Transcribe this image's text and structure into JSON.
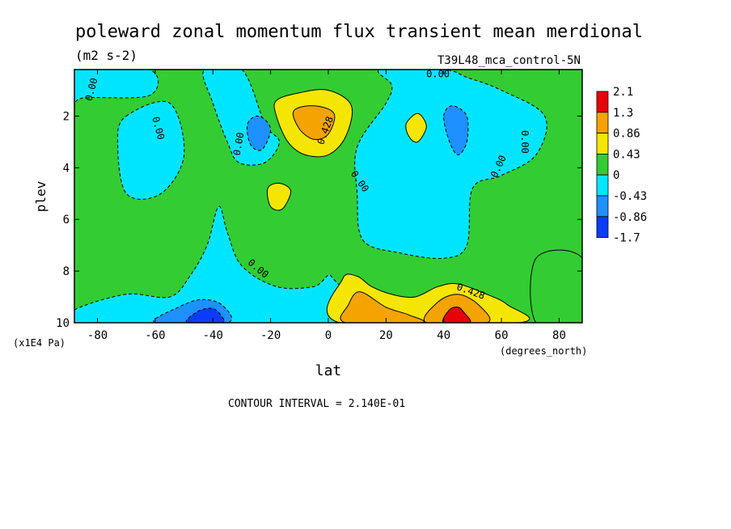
{
  "chart_data": {
    "type": "heatmap",
    "title": "poleward zonal momentum flux transient mean merdional",
    "units": "(m2 s-2)",
    "dataset": "T39L48_mca_control-5N",
    "xlabel": "lat",
    "xunits": "(degrees_north)",
    "ylabel": "plev",
    "yunits": "(x1E4 Pa)",
    "xlim": [
      -88,
      88
    ],
    "ylim": [
      10,
      0.2
    ],
    "x_ticks": [
      -80,
      -60,
      -40,
      -20,
      0,
      20,
      40,
      60,
      80
    ],
    "x_tick_labels": [
      "-80",
      "-60",
      "-40",
      "-20",
      "0",
      "20",
      "40",
      "60",
      "80"
    ],
    "y_ticks": [
      2,
      4,
      6,
      8,
      10
    ],
    "y_tick_labels": [
      "2",
      "4",
      "6",
      "8",
      "10"
    ],
    "contour_interval_text": "CONTOUR INTERVAL = 2.140E-01",
    "contour_labels": [
      "0.00",
      "0.00",
      "0.00",
      "0.00",
      "0.00",
      "0.00",
      "0.00",
      "0.00",
      "0.428",
      "0.428"
    ],
    "colorbar": {
      "labels": [
        "2.1",
        "1.3",
        "0.86",
        "0.43",
        "0",
        "-0.43",
        "-0.86",
        "-1.7"
      ],
      "colors": [
        "#e8000b",
        "#f5a300",
        "#f5e600",
        "#33cc33",
        "#00e5ff",
        "#1e90ff",
        "#0a3cff"
      ]
    },
    "background_level": {
      "value_range": [
        0,
        0.43
      ],
      "color": "#33cc33"
    },
    "regions": [
      {
        "level": -0.2,
        "color": "#00e5ff",
        "points": [
          [
            -88,
            0.2
          ],
          [
            -62,
            0.2
          ],
          [
            -62,
            1.2
          ],
          [
            -85,
            1.3
          ],
          [
            -88,
            1.6
          ]
        ]
      },
      {
        "level": -0.2,
        "color": "#00e5ff",
        "points": [
          [
            -70,
            2.0
          ],
          [
            -55,
            1.5
          ],
          [
            -50,
            3.5
          ],
          [
            -58,
            5.0
          ],
          [
            -70,
            5.0
          ],
          [
            -73,
            3.0
          ]
        ]
      },
      {
        "level": -0.2,
        "color": "#00e5ff",
        "points": [
          [
            -43,
            0.2
          ],
          [
            -30,
            0.2
          ],
          [
            -22,
            2.3
          ],
          [
            -17,
            3.0
          ],
          [
            -22,
            3.8
          ],
          [
            -31,
            3.8
          ],
          [
            -35,
            3.0
          ],
          [
            -40,
            1.5
          ]
        ]
      },
      {
        "level": -0.5,
        "color": "#1e90ff",
        "points": [
          [
            -28,
            2.3
          ],
          [
            -24,
            2.0
          ],
          [
            -20,
            2.5
          ],
          [
            -23,
            3.3
          ],
          [
            -27,
            3.1
          ]
        ]
      },
      {
        "level": -0.2,
        "color": "#00e5ff",
        "points": [
          [
            18,
            0.2
          ],
          [
            40,
            0.2
          ],
          [
            48,
            0.5
          ],
          [
            60,
            1.0
          ],
          [
            75,
            2.0
          ],
          [
            72,
            3.5
          ],
          [
            60,
            4.3
          ],
          [
            50,
            4.8
          ],
          [
            48,
            7.0
          ],
          [
            40,
            7.5
          ],
          [
            25,
            7.3
          ],
          [
            12,
            6.8
          ],
          [
            10,
            5.0
          ],
          [
            10,
            3.2
          ],
          [
            20,
            1.5
          ],
          [
            22,
            0.8
          ]
        ]
      },
      {
        "level": -0.5,
        "color": "#1e90ff",
        "points": [
          [
            40,
            2.0
          ],
          [
            43,
            1.6
          ],
          [
            48,
            2.0
          ],
          [
            48,
            3.0
          ],
          [
            45,
            3.5
          ],
          [
            42,
            3.0
          ]
        ]
      },
      {
        "level": -0.2,
        "color": "#00e5ff",
        "points": [
          [
            -88,
            9.5
          ],
          [
            -70,
            8.9
          ],
          [
            -55,
            9.0
          ],
          [
            -48,
            8.2
          ],
          [
            -42,
            7.0
          ],
          [
            -38,
            5.5
          ],
          [
            -35,
            6.5
          ],
          [
            -30,
            7.8
          ],
          [
            -18,
            8.6
          ],
          [
            -5,
            8.6
          ],
          [
            1,
            8.2
          ],
          [
            2,
            10
          ],
          [
            -88,
            10
          ]
        ]
      },
      {
        "level": -0.5,
        "color": "#1e90ff",
        "points": [
          [
            -60,
            10
          ],
          [
            -52,
            9.4
          ],
          [
            -44,
            9.1
          ],
          [
            -37,
            9.3
          ],
          [
            -35,
            10
          ]
        ]
      },
      {
        "level": -0.9,
        "color": "#0a3cff",
        "points": [
          [
            -49,
            10
          ],
          [
            -45,
            9.55
          ],
          [
            -40,
            9.45
          ],
          [
            -37,
            9.75
          ],
          [
            -37,
            10
          ]
        ]
      },
      {
        "level": 0.2,
        "color": "#33cc33",
        "points": [
          [
            72,
            7.5
          ],
          [
            88,
            7.5
          ],
          [
            88,
            10
          ],
          [
            72,
            10
          ]
        ]
      },
      {
        "level": 0.6,
        "color": "#f5e600",
        "points": [
          [
            -18,
            1.4
          ],
          [
            -10,
            1.1
          ],
          [
            0,
            1.0
          ],
          [
            8,
            1.6
          ],
          [
            6,
            2.8
          ],
          [
            0,
            3.5
          ],
          [
            -8,
            3.5
          ],
          [
            -14,
            3.0
          ],
          [
            -18,
            2.0
          ]
        ]
      },
      {
        "level": 1.0,
        "color": "#f5a300",
        "points": [
          [
            -12,
            1.8
          ],
          [
            -5,
            1.6
          ],
          [
            2,
            1.9
          ],
          [
            0,
            2.7
          ],
          [
            -5,
            2.9
          ],
          [
            -10,
            2.5
          ]
        ]
      },
      {
        "level": 0.6,
        "color": "#f5e600",
        "points": [
          [
            -21,
            4.8
          ],
          [
            -17,
            4.6
          ],
          [
            -13,
            4.9
          ],
          [
            -16,
            5.6
          ],
          [
            -20,
            5.5
          ]
        ]
      },
      {
        "level": 0.6,
        "color": "#f5e600",
        "points": [
          [
            27,
            2.3
          ],
          [
            31,
            1.9
          ],
          [
            34,
            2.4
          ],
          [
            31,
            3.0
          ],
          [
            28,
            2.8
          ]
        ]
      },
      {
        "level": 0.6,
        "color": "#f5e600",
        "points": [
          [
            4,
            10
          ],
          [
            5,
            8.3
          ],
          [
            10,
            8.2
          ],
          [
            15,
            8.6
          ],
          [
            22,
            8.9
          ],
          [
            30,
            9.0
          ],
          [
            38,
            8.6
          ],
          [
            45,
            8.5
          ],
          [
            55,
            8.9
          ],
          [
            62,
            9.3
          ],
          [
            66,
            10
          ]
        ]
      },
      {
        "level": 1.0,
        "color": "#f5a300",
        "points": [
          [
            6,
            10
          ],
          [
            7,
            9.3
          ],
          [
            11,
            8.8
          ],
          [
            20,
            9.4
          ],
          [
            28,
            9.7
          ],
          [
            32,
            10
          ]
        ]
      },
      {
        "level": 1.0,
        "color": "#f5a300",
        "points": [
          [
            34,
            10
          ],
          [
            38,
            9.2
          ],
          [
            45,
            8.9
          ],
          [
            52,
            9.3
          ],
          [
            55,
            10
          ]
        ]
      },
      {
        "level": 1.5,
        "color": "#e8000b",
        "points": [
          [
            40,
            10
          ],
          [
            42,
            9.5
          ],
          [
            45,
            9.4
          ],
          [
            47,
            9.6
          ],
          [
            49,
            10
          ]
        ]
      }
    ]
  }
}
